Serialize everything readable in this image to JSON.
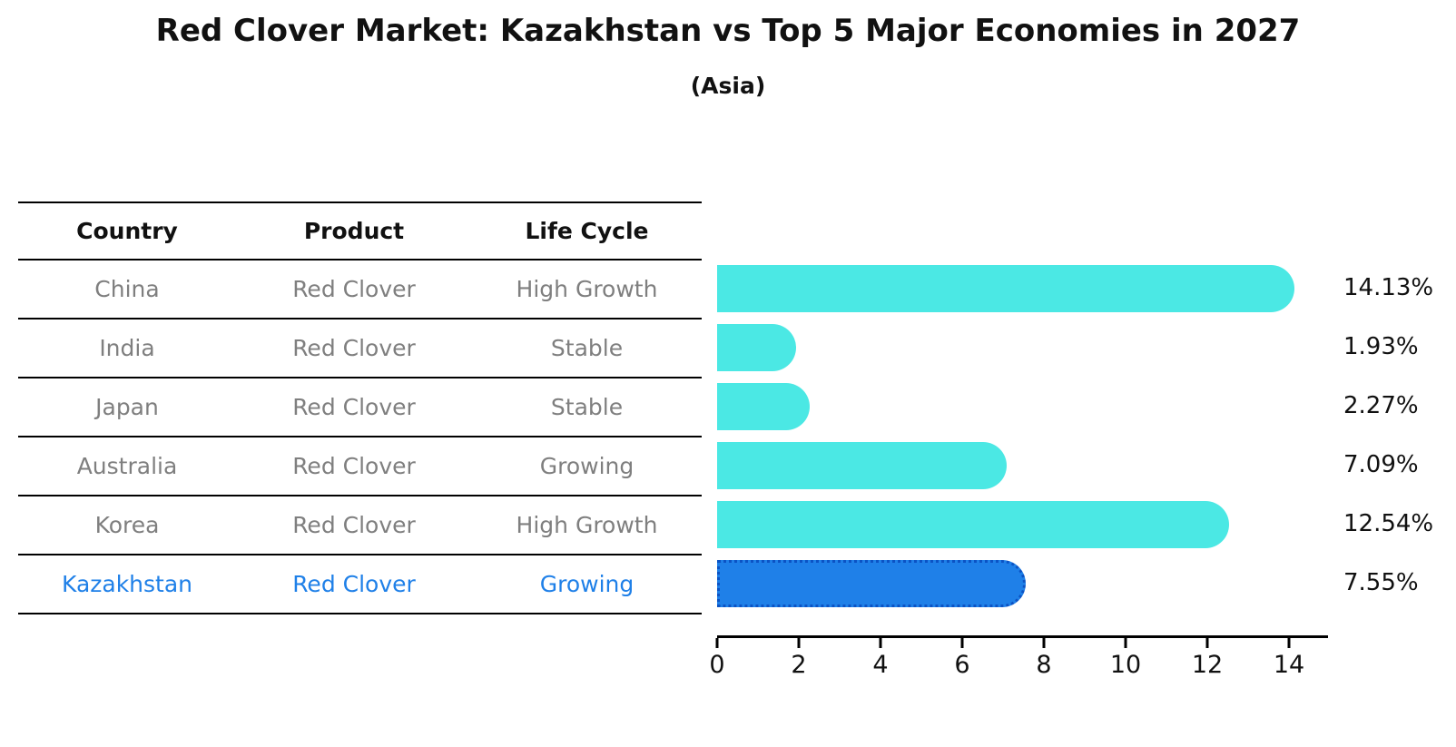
{
  "title": "Red Clover Market: Kazakhstan vs Top 5 Major Economies in 2027",
  "subtitle": "(Asia)",
  "colors": {
    "bar": "#4BE8E4",
    "highlight_bar": "#1F80E8",
    "highlight_bar_border": "#0C53C4",
    "gray_text": "#7F7F7F",
    "highlight_text": "#1F80E8",
    "axis": "#000000"
  },
  "table": {
    "headers": [
      "Country",
      "Product",
      "Life Cycle"
    ],
    "rows": [
      [
        "China",
        "Red Clover",
        "High Growth"
      ],
      [
        "India",
        "Red Clover",
        "Stable"
      ],
      [
        "Japan",
        "Red Clover",
        "Stable"
      ],
      [
        "Australia",
        "Red Clover",
        "Growing"
      ],
      [
        "Korea",
        "Red Clover",
        "High Growth"
      ],
      [
        "Kazakhstan",
        "Red Clover",
        "Growing"
      ]
    ],
    "highlight_row_index": 5
  },
  "chart_data": {
    "type": "bar",
    "orientation": "horizontal",
    "categories": [
      "China",
      "India",
      "Japan",
      "Australia",
      "Korea",
      "Kazakhstan"
    ],
    "values": [
      14.13,
      1.93,
      2.27,
      7.09,
      12.54,
      7.55
    ],
    "value_labels": [
      "14.13%",
      "1.93%",
      "2.27%",
      "7.09%",
      "12.54%",
      "7.55%"
    ],
    "title": "Red Clover Market: Kazakhstan vs Top 5 Major Economies in 2027",
    "subtitle": "(Asia)",
    "xlabel": "",
    "ylabel": "",
    "xlim": [
      0,
      15
    ],
    "xticks": [
      0,
      2,
      4,
      6,
      8,
      10,
      12,
      14
    ],
    "highlight_index": 5,
    "grid": false,
    "legend": "none"
  }
}
